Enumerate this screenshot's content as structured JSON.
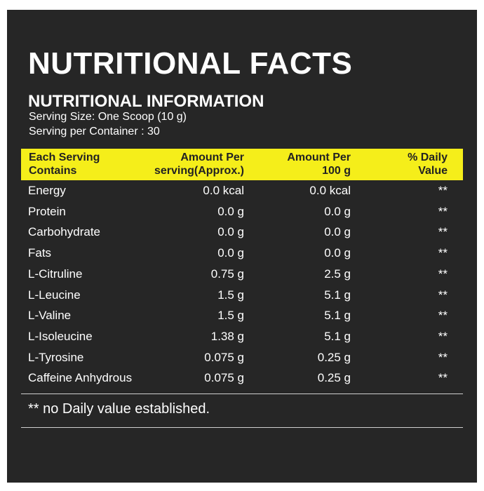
{
  "header": {
    "title": "NUTRITIONAL FACTS",
    "subtitle": "NUTRITIONAL INFORMATION",
    "serving_size": "Serving Size: One Scoop (10 g)",
    "servings_per_container": "Serving per Container : 30"
  },
  "table": {
    "columns": [
      "Each Serving\nContains",
      "Amount Per\nserving(Approx.)",
      "Amount Per\n100 g",
      "% Daily\nValue"
    ],
    "rows": [
      [
        "Energy",
        "0.0 kcal",
        "0.0 kcal",
        "**"
      ],
      [
        "Protein",
        "0.0 g",
        "0.0 g",
        "**"
      ],
      [
        "Carbohydrate",
        "0.0 g",
        "0.0 g",
        "**"
      ],
      [
        "Fats",
        "0.0 g",
        "0.0 g",
        "**"
      ],
      [
        "L-Citruline",
        "0.75 g",
        "2.5 g",
        "**"
      ],
      [
        "L-Leucine",
        "1.5 g",
        "5.1 g",
        "**"
      ],
      [
        "L-Valine",
        "1.5 g",
        "5.1 g",
        "**"
      ],
      [
        "L-Isoleucine",
        "1.38 g",
        "5.1 g",
        "**"
      ],
      [
        "L-Tyrosine",
        "0.075 g",
        "0.25 g",
        "**"
      ],
      [
        "Caffeine Anhydrous",
        "0.075 g",
        "0.25 g",
        "**"
      ]
    ]
  },
  "footnote": "** no Daily value established."
}
